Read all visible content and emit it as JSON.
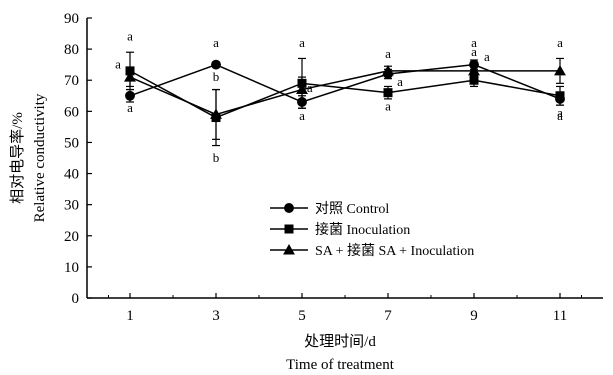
{
  "chart_data": {
    "type": "line",
    "ylabel": "相对电导率/%",
    "ylabel_en": "Relative conductivity",
    "xlabel": "处理时间/d",
    "xlabel_en": "Time of treatment",
    "x": [
      1,
      3,
      5,
      7,
      9,
      11
    ],
    "xlim": [
      0,
      12
    ],
    "ylim": [
      0,
      90
    ],
    "yticks": [
      0,
      10,
      20,
      30,
      40,
      50,
      60,
      70,
      80,
      90
    ],
    "legend_position": "lower-center",
    "series": [
      {
        "name": "对照 Control",
        "marker": "circle",
        "values": [
          65,
          75,
          63,
          72,
          75,
          64
        ],
        "errors": [
          2,
          0,
          2,
          1.5,
          1.5,
          2
        ]
      },
      {
        "name": "接菌 Inoculation",
        "marker": "square",
        "values": [
          73,
          58,
          69,
          66,
          70,
          65
        ],
        "errors": [
          6,
          9,
          8,
          2,
          2,
          3
        ]
      },
      {
        "name": "SA + 接菌 SA + Inoculation",
        "marker": "triangle",
        "values": [
          71,
          59,
          67,
          73,
          73,
          73
        ],
        "errors": [
          3,
          8,
          4,
          1.5,
          1.5,
          4
        ]
      }
    ],
    "annotations": [
      {
        "x": 1,
        "y": 84,
        "text": "a"
      },
      {
        "x": 0.72,
        "y": 75,
        "text": "a"
      },
      {
        "x": 1,
        "y": 61,
        "text": "a"
      },
      {
        "x": 3,
        "y": 82,
        "text": "a"
      },
      {
        "x": 3,
        "y": 71,
        "text": "b"
      },
      {
        "x": 3,
        "y": 45,
        "text": "b"
      },
      {
        "x": 5,
        "y": 82,
        "text": "a"
      },
      {
        "x": 5.18,
        "y": 67.5,
        "text": "a"
      },
      {
        "x": 5,
        "y": 58.5,
        "text": "a"
      },
      {
        "x": 7,
        "y": 78.5,
        "text": "a"
      },
      {
        "x": 7.28,
        "y": 69.5,
        "text": "a"
      },
      {
        "x": 7,
        "y": 61.5,
        "text": "a"
      },
      {
        "x": 9,
        "y": 82,
        "text": "a"
      },
      {
        "x": 9.3,
        "y": 77.5,
        "text": "a"
      },
      {
        "x": 9,
        "y": 79,
        "text": "a"
      },
      {
        "x": 11,
        "y": 82,
        "text": "a"
      },
      {
        "x": 11,
        "y": 59.5,
        "text": "a"
      },
      {
        "x": 11,
        "y": 58.5,
        "text": "a"
      }
    ]
  }
}
